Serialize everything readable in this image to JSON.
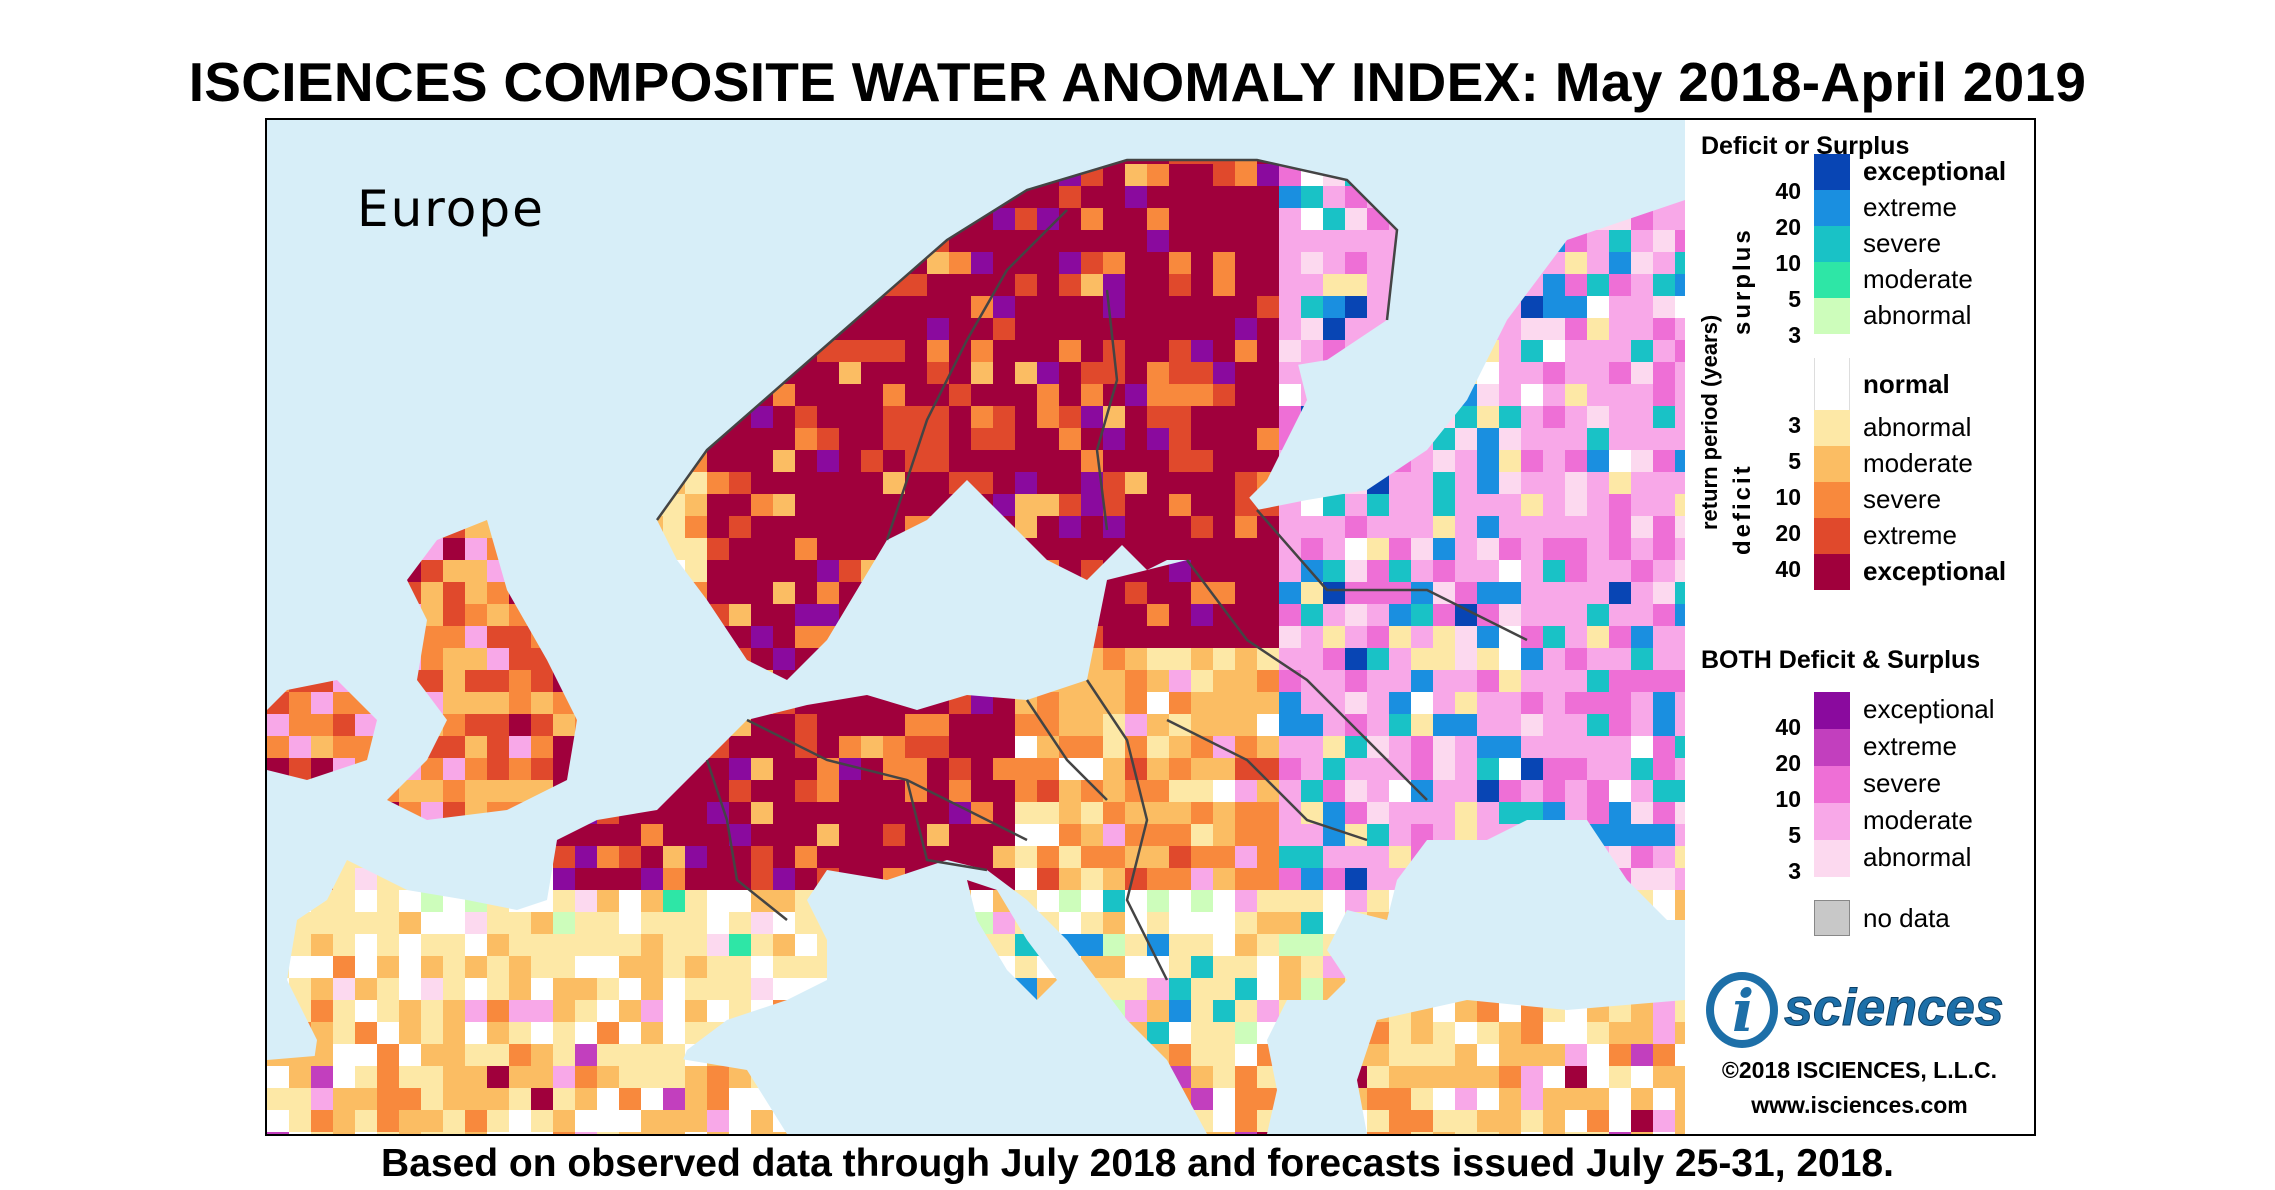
{
  "title": "ISCIENCES COMPOSITE WATER ANOMALY INDEX: May 2018-April 2019",
  "footnote": "Based on observed data through July 2018 and forecasts issued July 25-31, 2018.",
  "map": {
    "region_label": "Europe"
  },
  "legend": {
    "heading_single": "Deficit or Surplus",
    "heading_both": "BOTH Deficit & Surplus",
    "axis_label": "return period (years)",
    "surplus_label": "surplus",
    "deficit_label": "deficit",
    "normal_label": "normal",
    "no_data_label": "no data",
    "surplus_classes": [
      {
        "label": "exceptional",
        "color": "#0845b4"
      },
      {
        "label": "extreme",
        "color": "#1a8fe0"
      },
      {
        "label": "severe",
        "color": "#19c2c6"
      },
      {
        "label": "moderate",
        "color": "#2ee6a6"
      },
      {
        "label": "abnormal",
        "color": "#cdfdbb"
      }
    ],
    "normal_color": "#ffffff",
    "deficit_classes": [
      {
        "label": "abnormal",
        "color": "#fde8a6"
      },
      {
        "label": "moderate",
        "color": "#fbbd63"
      },
      {
        "label": "severe",
        "color": "#f8893d"
      },
      {
        "label": "extreme",
        "color": "#e0492c"
      },
      {
        "label": "exceptional",
        "color": "#a0003c"
      }
    ],
    "both_classes": [
      {
        "label": "exceptional",
        "color": "#8a0a9e"
      },
      {
        "label": "extreme",
        "color": "#c23fbe"
      },
      {
        "label": "severe",
        "color": "#ee6fd6"
      },
      {
        "label": "moderate",
        "color": "#f8a8e8"
      },
      {
        "label": "abnormal",
        "color": "#fcd9ef"
      }
    ],
    "no_data_color": "#c8c8c8",
    "surplus_periods": [
      "40",
      "20",
      "10",
      "5",
      "3"
    ],
    "deficit_periods": [
      "3",
      "5",
      "10",
      "20",
      "40"
    ],
    "both_periods": [
      "40",
      "20",
      "10",
      "5",
      "3"
    ]
  },
  "logo": {
    "letter": "i",
    "text": "sciences",
    "color": "#1d6fa8"
  },
  "copyright": "©2018 ISCIENCES, L.L.C.",
  "website": "www.isciences.com"
}
